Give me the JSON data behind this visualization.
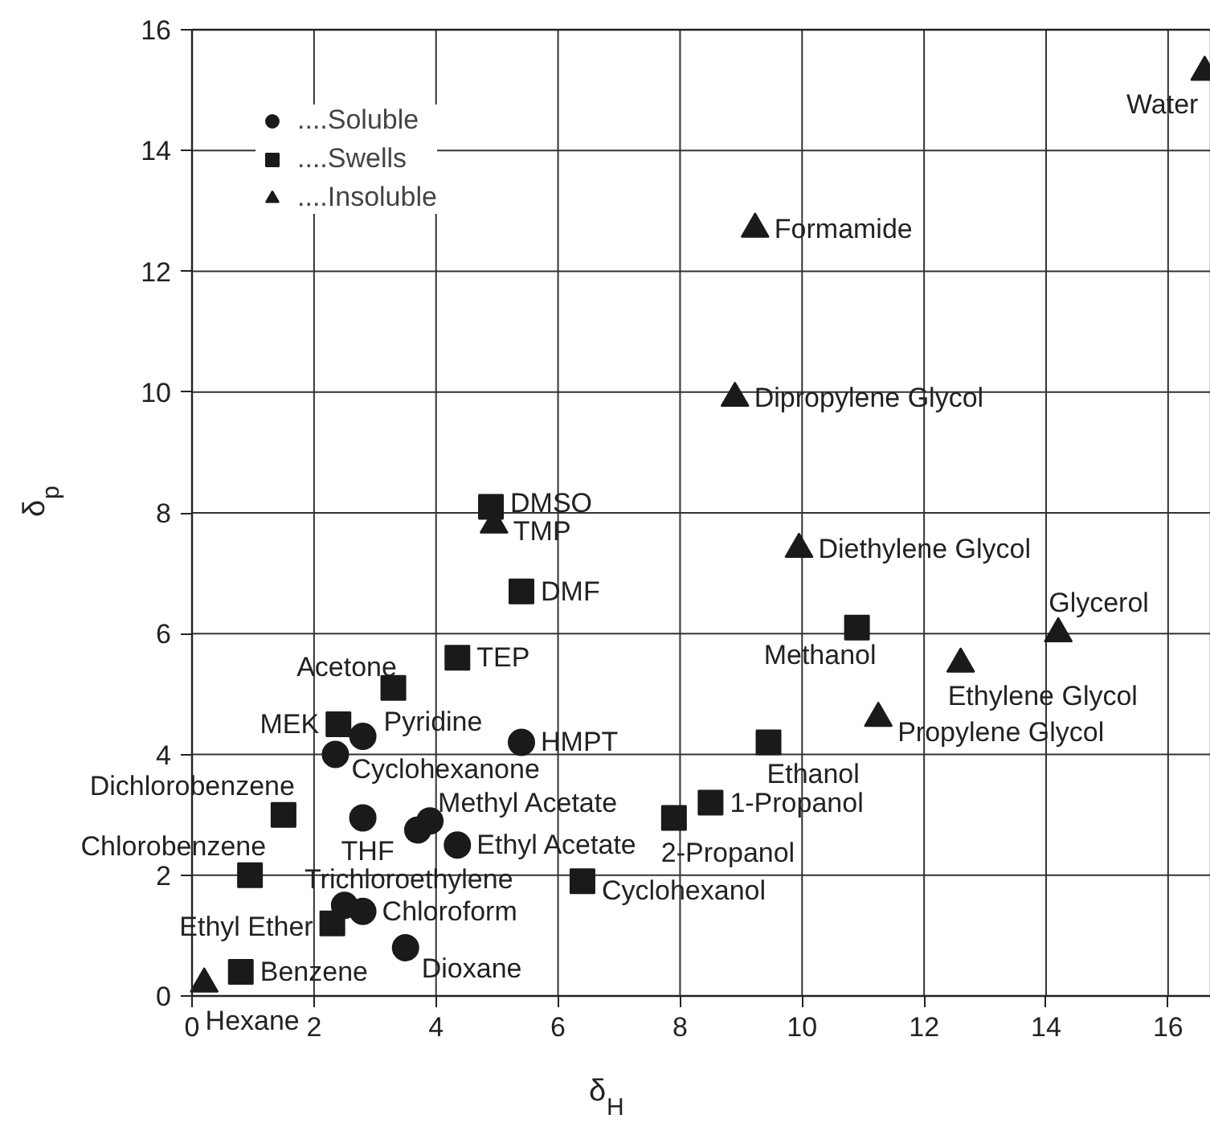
{
  "chart_data": {
    "type": "scatter",
    "xlabel": "δ$_{H}$",
    "ylabel": "δ$_{p}$",
    "xlim": [
      0,
      16.7
    ],
    "ylim": [
      0,
      16
    ],
    "xticks": [
      0,
      2,
      4,
      6,
      8,
      10,
      12,
      14,
      16
    ],
    "yticks": [
      0,
      2,
      4,
      6,
      8,
      10,
      12,
      14,
      16
    ],
    "grid": true,
    "legend": "top left",
    "series": [
      {
        "name": "....Soluble",
        "marker": "circle",
        "color": "#1a1a1a",
        "x": [
          2.8,
          2.5,
          3.5,
          2.8,
          3.9,
          3.7,
          4.35,
          2.8,
          2.35,
          5.4
        ],
        "values": [
          1.4,
          1.5,
          0.8,
          2.95,
          2.9,
          2.75,
          2.5,
          4.3,
          4.0,
          4.2
        ]
      },
      {
        "name": "....Swells",
        "marker": "square",
        "color": "#1a1a1a",
        "x": [
          0.8,
          2.3,
          1.5,
          0.95,
          2.4,
          3.3,
          4.35,
          5.4,
          4.9,
          6.4,
          7.9,
          8.5,
          9.45,
          10.9
        ],
        "values": [
          0.4,
          1.2,
          3.0,
          2.0,
          4.5,
          5.1,
          5.6,
          6.7,
          8.1,
          1.9,
          2.95,
          3.2,
          4.2,
          6.1
        ]
      },
      {
        "name": "....Insoluble",
        "marker": "triangle",
        "color": "#1a1a1a",
        "x": [
          0.2,
          4.95,
          9.95,
          14.2,
          12.6,
          11.25,
          9.23,
          8.9,
          16.6
        ],
        "values": [
          0.2,
          7.8,
          7.4,
          6.0,
          5.5,
          4.6,
          12.7,
          9.9,
          15.3
        ]
      }
    ],
    "annotations": [
      {
        "text": "Hexane",
        "x": 0.2,
        "y": 0.2
      },
      {
        "text": "Benzene",
        "x": 0.8,
        "y": 0.4
      },
      {
        "text": "Ethyl Ether",
        "x": 2.3,
        "y": 1.2
      },
      {
        "text": "Chloroform",
        "x": 2.8,
        "y": 1.4
      },
      {
        "text": "Trichloroethylene",
        "x": 2.5,
        "y": 1.5
      },
      {
        "text": "Dioxane",
        "x": 3.5,
        "y": 0.8
      },
      {
        "text": "THF",
        "x": 2.8,
        "y": 2.95
      },
      {
        "text": "Methyl Acetate",
        "x": 3.9,
        "y": 2.9
      },
      {
        "text": "Ethyl Acetate",
        "x": 4.35,
        "y": 2.5
      },
      {
        "text": "Pyridine",
        "x": 2.8,
        "y": 4.3
      },
      {
        "text": "Cyclohexanone",
        "x": 2.35,
        "y": 4.0
      },
      {
        "text": "HMPT",
        "x": 5.4,
        "y": 4.2
      },
      {
        "text": "Dichlorobenzene",
        "x": 1.5,
        "y": 3.0
      },
      {
        "text": "Chlorobenzene",
        "x": 0.95,
        "y": 2.0
      },
      {
        "text": "MEK",
        "x": 2.4,
        "y": 4.5
      },
      {
        "text": "Acetone",
        "x": 3.3,
        "y": 5.1
      },
      {
        "text": "TEP",
        "x": 4.35,
        "y": 5.6
      },
      {
        "text": "DMF",
        "x": 5.4,
        "y": 6.7
      },
      {
        "text": "DMSO",
        "x": 4.9,
        "y": 8.1
      },
      {
        "text": "TMP",
        "x": 4.95,
        "y": 7.8
      },
      {
        "text": "Cyclohexanol",
        "x": 6.4,
        "y": 1.9
      },
      {
        "text": "2-Propanol",
        "x": 7.9,
        "y": 2.95
      },
      {
        "text": "1-Propanol",
        "x": 8.5,
        "y": 3.2
      },
      {
        "text": "Ethanol",
        "x": 9.45,
        "y": 4.2
      },
      {
        "text": "Methanol",
        "x": 10.9,
        "y": 6.1
      },
      {
        "text": "Diethylene Glycol",
        "x": 9.95,
        "y": 7.4
      },
      {
        "text": "Glycerol",
        "x": 14.2,
        "y": 6.0
      },
      {
        "text": "Ethylene Glycol",
        "x": 12.6,
        "y": 5.5
      },
      {
        "text": "Propylene Glycol",
        "x": 11.25,
        "y": 4.6
      },
      {
        "text": "Formamide",
        "x": 9.23,
        "y": 12.7
      },
      {
        "text": "Dipropylene Glycol",
        "x": 8.9,
        "y": 9.9
      },
      {
        "text": "Water",
        "x": 16.6,
        "y": 15.3
      }
    ]
  }
}
